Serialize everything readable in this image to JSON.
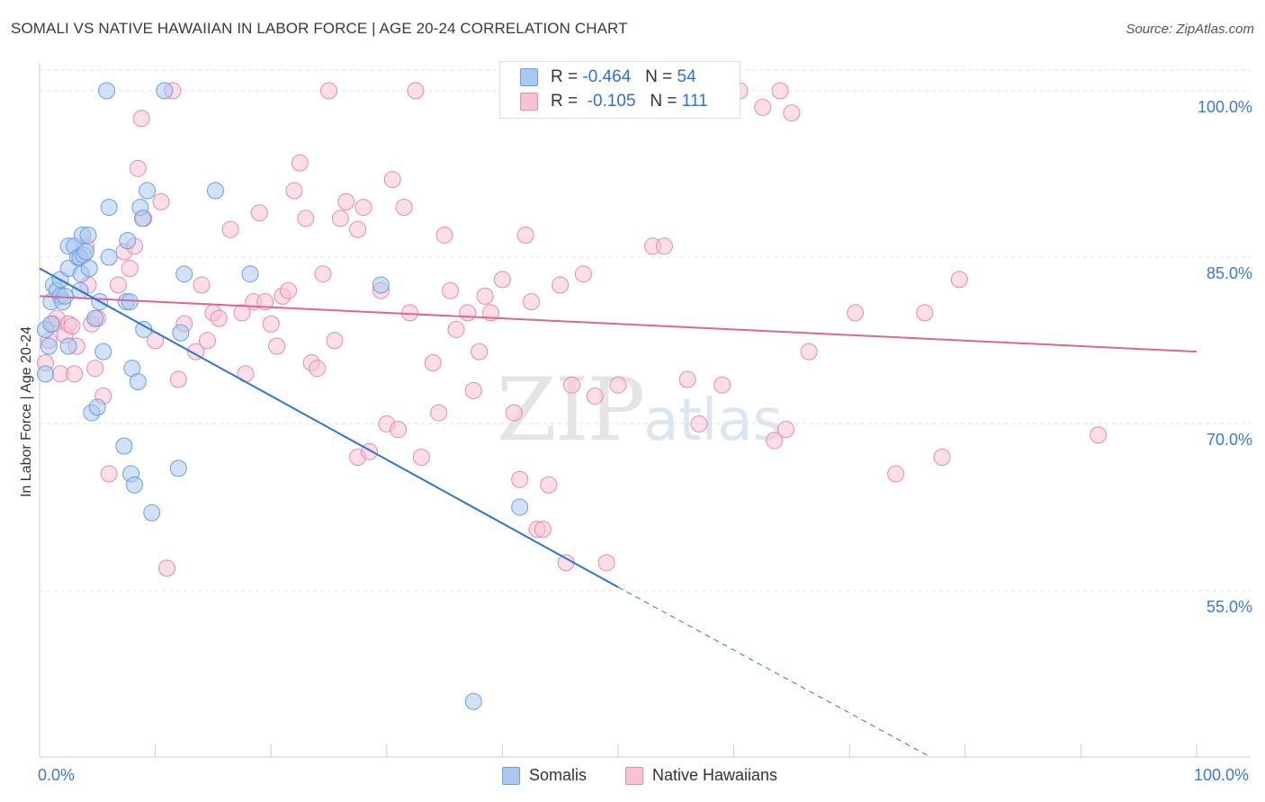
{
  "header": {
    "title": "SOMALI VS NATIVE HAWAIIAN IN LABOR FORCE | AGE 20-24 CORRELATION CHART",
    "source": "Source: ZipAtlas.com"
  },
  "watermark": {
    "zip": "ZIP",
    "atlas": "atlas"
  },
  "legend": {
    "rows": [
      {
        "r_label": "R =",
        "r_value": "-0.464",
        "n_label": "N =",
        "n_value": "54"
      },
      {
        "r_label": "R =",
        "r_value": "-0.105",
        "n_label": "N =",
        "n_value": "111"
      }
    ]
  },
  "chart_data": {
    "type": "scatter",
    "title": "SOMALI VS NATIVE HAWAIIAN IN LABOR FORCE | AGE 20-24 CORRELATION CHART",
    "xlabel": "",
    "ylabel": "In Labor Force | Age 20-24",
    "xlim": [
      0,
      100
    ],
    "ylim": [
      40,
      102.5
    ],
    "x_tick_labels": [
      "0.0%",
      "100.0%"
    ],
    "y_ticks": [
      55,
      70,
      85,
      100
    ],
    "y_tick_labels": [
      "55.0%",
      "70.0%",
      "85.0%",
      "100.0%"
    ],
    "grid": true,
    "legend_position": "top-center",
    "colors": {
      "somali_fill": "#a9c8f3",
      "somali_stroke": "#6a9ee0",
      "somali_line": "#2f74d0",
      "hawaiian_fill": "#f7c3d3",
      "hawaiian_stroke": "#e88aa9",
      "hawaiian_line": "#e0648f",
      "tick_text": "#3b78d8",
      "grid": "#e3e3e3"
    },
    "series": [
      {
        "name": "Somalis",
        "r": -0.464,
        "n": 54,
        "trend": {
          "x0": 0,
          "y0": 84.0,
          "x1": 50,
          "y1": 55.3,
          "dash_to_x": 77,
          "dash_y_end": 40
        },
        "points": [
          [
            0.5,
            74.5
          ],
          [
            0.5,
            78.5
          ],
          [
            0.8,
            77.0
          ],
          [
            1.0,
            79.0
          ],
          [
            1.0,
            81.0
          ],
          [
            1.2,
            82.5
          ],
          [
            1.5,
            82.0
          ],
          [
            1.8,
            83.0
          ],
          [
            1.8,
            81.5
          ],
          [
            2.0,
            81.0
          ],
          [
            2.2,
            81.5
          ],
          [
            2.5,
            84.0
          ],
          [
            2.5,
            86.0
          ],
          [
            2.5,
            77.0
          ],
          [
            3.0,
            86.0
          ],
          [
            3.3,
            85.0
          ],
          [
            3.5,
            85.0
          ],
          [
            3.5,
            82.0
          ],
          [
            3.6,
            83.5
          ],
          [
            3.7,
            87.0
          ],
          [
            3.8,
            85.2
          ],
          [
            4.0,
            85.5
          ],
          [
            4.2,
            87.0
          ],
          [
            4.3,
            84.0
          ],
          [
            4.5,
            71.0
          ],
          [
            4.8,
            79.5
          ],
          [
            5.0,
            71.5
          ],
          [
            5.2,
            81.0
          ],
          [
            5.5,
            76.5
          ],
          [
            5.8,
            100.0
          ],
          [
            6.0,
            89.5
          ],
          [
            6.0,
            85.0
          ],
          [
            7.3,
            68.0
          ],
          [
            7.5,
            81.0
          ],
          [
            7.6,
            86.5
          ],
          [
            7.8,
            81.0
          ],
          [
            7.9,
            65.5
          ],
          [
            8.0,
            75.0
          ],
          [
            8.2,
            64.5
          ],
          [
            8.5,
            73.8
          ],
          [
            8.7,
            89.5
          ],
          [
            8.9,
            88.5
          ],
          [
            9.0,
            78.5
          ],
          [
            9.3,
            91.0
          ],
          [
            9.7,
            62.0
          ],
          [
            10.8,
            100.0
          ],
          [
            12.0,
            66.0
          ],
          [
            12.2,
            78.2
          ],
          [
            12.5,
            83.5
          ],
          [
            15.2,
            91.0
          ],
          [
            18.2,
            83.5
          ],
          [
            29.5,
            82.5
          ],
          [
            37.5,
            45.0
          ],
          [
            41.5,
            62.5
          ]
        ]
      },
      {
        "name": "Native Hawaiians",
        "r": -0.105,
        "n": 111,
        "trend": {
          "x0": 0,
          "y0": 81.5,
          "x1": 100,
          "y1": 76.5
        },
        "points": [
          [
            0.5,
            75.5
          ],
          [
            0.8,
            77.5
          ],
          [
            1.2,
            79.0
          ],
          [
            1.5,
            79.5
          ],
          [
            1.8,
            74.5
          ],
          [
            2.2,
            78.0
          ],
          [
            2.5,
            79.0
          ],
          [
            2.8,
            78.8
          ],
          [
            3.0,
            74.5
          ],
          [
            3.2,
            77.0
          ],
          [
            3.5,
            85.0
          ],
          [
            4.0,
            86.0
          ],
          [
            4.2,
            82.5
          ],
          [
            4.5,
            79.0
          ],
          [
            4.8,
            75.0
          ],
          [
            5.0,
            79.5
          ],
          [
            5.5,
            72.5
          ],
          [
            6.0,
            65.5
          ],
          [
            6.8,
            82.5
          ],
          [
            7.3,
            85.5
          ],
          [
            7.8,
            84.0
          ],
          [
            8.2,
            86.0
          ],
          [
            8.5,
            93.0
          ],
          [
            8.8,
            97.5
          ],
          [
            9.0,
            88.5
          ],
          [
            10.0,
            77.5
          ],
          [
            10.5,
            90.0
          ],
          [
            11.0,
            57.0
          ],
          [
            11.5,
            100.0
          ],
          [
            12.0,
            74.0
          ],
          [
            12.5,
            79.0
          ],
          [
            13.5,
            76.5
          ],
          [
            14.0,
            82.5
          ],
          [
            14.5,
            77.5
          ],
          [
            15.0,
            80.0
          ],
          [
            15.5,
            79.5
          ],
          [
            16.5,
            87.5
          ],
          [
            17.5,
            80.0
          ],
          [
            17.8,
            74.5
          ],
          [
            18.5,
            81.0
          ],
          [
            19.0,
            89.0
          ],
          [
            19.5,
            81.0
          ],
          [
            20.0,
            79.0
          ],
          [
            20.5,
            77.0
          ],
          [
            21.0,
            81.5
          ],
          [
            21.5,
            82.0
          ],
          [
            22.0,
            91.0
          ],
          [
            22.5,
            93.5
          ],
          [
            23.0,
            88.5
          ],
          [
            23.5,
            75.5
          ],
          [
            24.0,
            75.0
          ],
          [
            24.5,
            83.5
          ],
          [
            25.0,
            100.0
          ],
          [
            25.5,
            77.5
          ],
          [
            26.0,
            88.5
          ],
          [
            26.5,
            90.0
          ],
          [
            27.5,
            67.0
          ],
          [
            27.5,
            87.5
          ],
          [
            28.0,
            89.5
          ],
          [
            28.5,
            67.5
          ],
          [
            29.5,
            82.0
          ],
          [
            30.0,
            70.0
          ],
          [
            30.5,
            92.0
          ],
          [
            31.0,
            69.5
          ],
          [
            31.5,
            89.5
          ],
          [
            32.0,
            80.0
          ],
          [
            32.5,
            100.0
          ],
          [
            33.0,
            67.0
          ],
          [
            34.0,
            75.5
          ],
          [
            34.5,
            71.0
          ],
          [
            35.0,
            87.0
          ],
          [
            35.5,
            82.0
          ],
          [
            36.0,
            78.5
          ],
          [
            37.0,
            80.0
          ],
          [
            37.5,
            73.0
          ],
          [
            38.0,
            76.5
          ],
          [
            38.5,
            81.5
          ],
          [
            39.0,
            80.0
          ],
          [
            40.0,
            83.0
          ],
          [
            41.0,
            71.0
          ],
          [
            41.5,
            65.0
          ],
          [
            42.0,
            87.0
          ],
          [
            42.5,
            81.0
          ],
          [
            43.0,
            60.5
          ],
          [
            43.5,
            60.5
          ],
          [
            44.0,
            64.5
          ],
          [
            45.0,
            82.5
          ],
          [
            45.5,
            57.5
          ],
          [
            46.0,
            73.5
          ],
          [
            47.0,
            83.5
          ],
          [
            48.0,
            72.5
          ],
          [
            49.0,
            57.5
          ],
          [
            50.0,
            73.5
          ],
          [
            53.0,
            86.0
          ],
          [
            54.0,
            86.0
          ],
          [
            56.0,
            74.0
          ],
          [
            57.0,
            70.0
          ],
          [
            59.0,
            73.5
          ],
          [
            60.5,
            100.0
          ],
          [
            62.5,
            98.5
          ],
          [
            63.5,
            68.5
          ],
          [
            64.5,
            69.5
          ],
          [
            65.0,
            98.0
          ],
          [
            66.5,
            76.5
          ],
          [
            70.5,
            80.0
          ],
          [
            74.0,
            65.5
          ],
          [
            76.5,
            80.0
          ],
          [
            78.0,
            67.0
          ],
          [
            79.5,
            83.0
          ],
          [
            91.5,
            69.0
          ],
          [
            64.0,
            100.0
          ]
        ]
      }
    ]
  },
  "bottom_legend": {
    "somali": "Somalis",
    "hawaiian": "Native Hawaiians"
  }
}
